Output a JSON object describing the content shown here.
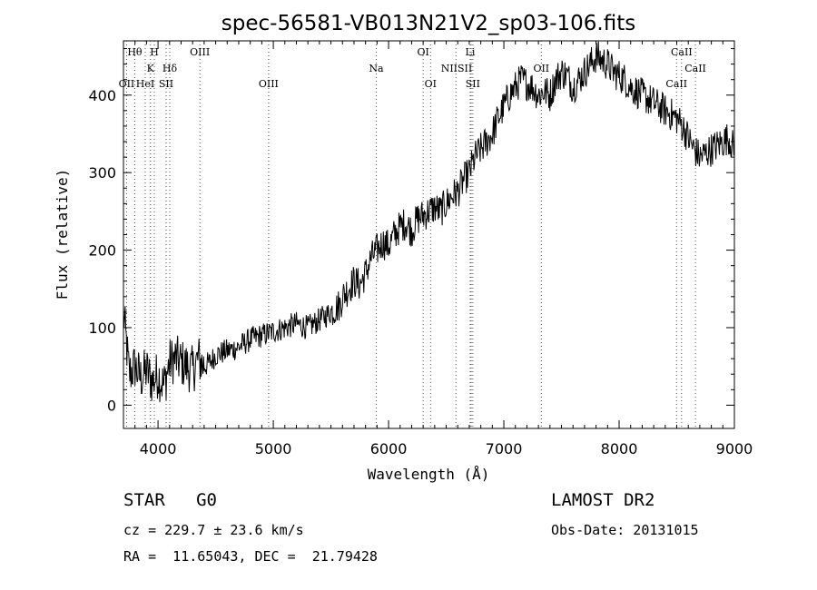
{
  "chart_data": {
    "type": "line",
    "title": "spec-56581-VB013N21V2_sp03-106.fits",
    "xlabel": "Wavelength (Å)",
    "ylabel": "Flux (relative)",
    "xlim": [
      3700,
      9000
    ],
    "ylim": [
      -30,
      470
    ],
    "x_ticks": [
      4000,
      5000,
      6000,
      7000,
      8000,
      9000
    ],
    "y_ticks": [
      0,
      100,
      200,
      300,
      400
    ],
    "grid": false,
    "line_color": "#000000",
    "marker_color": "#ff0000",
    "series": [
      {
        "x": [
          3700,
          3750,
          3800,
          3850,
          3900,
          3950,
          4000,
          4050,
          4100,
          4150,
          4200,
          4250,
          4300,
          4350,
          4400,
          4450,
          4500,
          4600,
          4700,
          4800,
          4900,
          5000,
          5100,
          5200,
          5300,
          5400,
          5500,
          5580,
          5600,
          5650,
          5700,
          5750,
          5800,
          5850,
          5900,
          5950,
          6000,
          6050,
          6100,
          6150,
          6200,
          6250,
          6300,
          6350,
          6400,
          6450,
          6500,
          6550,
          6600,
          6650,
          6700,
          6750,
          6800,
          6850,
          6900,
          6950,
          7000,
          7050,
          7100,
          7150,
          7200,
          7250,
          7300,
          7350,
          7400,
          7450,
          7500,
          7550,
          7600,
          7650,
          7700,
          7750,
          7800,
          7850,
          7900,
          7950,
          8000,
          8050,
          8100,
          8150,
          8200,
          8250,
          8300,
          8350,
          8400,
          8450,
          8500,
          8550,
          8600,
          8650,
          8700,
          8750,
          8800,
          8850,
          8900,
          8950,
          9000
        ],
        "y": [
          120,
          40,
          50,
          35,
          45,
          30,
          40,
          25,
          55,
          60,
          55,
          50,
          45,
          60,
          50,
          55,
          65,
          70,
          75,
          85,
          90,
          95,
          100,
          105,
          100,
          110,
          120,
          130,
          140,
          150,
          160,
          155,
          170,
          190,
          200,
          210,
          205,
          220,
          230,
          235,
          225,
          240,
          245,
          250,
          255,
          250,
          260,
          270,
          275,
          290,
          300,
          320,
          330,
          340,
          350,
          370,
          385,
          400,
          410,
          420,
          415,
          410,
          400,
          405,
          400,
          420,
          430,
          425,
          410,
          420,
          430,
          440,
          450,
          445,
          440,
          430,
          425,
          420,
          410,
          405,
          400,
          395,
          390,
          385,
          380,
          375,
          370,
          360,
          345,
          330,
          320,
          325,
          330,
          335,
          340,
          345,
          330
        ]
      }
    ],
    "lines_row1": [
      {
        "label": "Hθ",
        "x": 3798
      },
      {
        "label": "H",
        "x": 3968
      },
      {
        "label": "OIII",
        "x": 4363
      },
      {
        "label": "OI",
        "x": 6300
      },
      {
        "label": "Li",
        "x": 6708
      },
      {
        "label": "CaII",
        "x": 8542
      }
    ],
    "lines_row2": [
      {
        "label": "K",
        "x": 3934
      },
      {
        "label": "Hδ",
        "x": 4102
      },
      {
        "label": "Na",
        "x": 5893
      },
      {
        "label": "NIISII",
        "x": 6590
      },
      {
        "label": "OII",
        "x": 7325
      },
      {
        "label": "CaII",
        "x": 8662
      }
    ],
    "lines_row3": [
      {
        "label": "OII",
        "x": 3727
      },
      {
        "label": "HeI",
        "x": 3889
      },
      {
        "label": "SII",
        "x": 4070
      },
      {
        "label": "OIII",
        "x": 4959
      },
      {
        "label": "OI",
        "x": 6364
      },
      {
        "label": "SII",
        "x": 6731
      },
      {
        "label": "CaII",
        "x": 8498
      }
    ],
    "marker_x": [
      3727,
      3798,
      3889,
      3934,
      3968,
      4070,
      4102,
      4363,
      4959,
      5893,
      6300,
      6364,
      6584,
      6708,
      6717,
      6731,
      7325,
      8498,
      8542,
      8662
    ]
  },
  "info": {
    "class_label": "STAR   G0",
    "survey": "LAMOST DR2",
    "cz": "cz = 229.7 ± 23.6 km/s",
    "obs_date": "Obs-Date: 20131015",
    "coords": "RA =  11.65043, DEC =  21.79428"
  }
}
